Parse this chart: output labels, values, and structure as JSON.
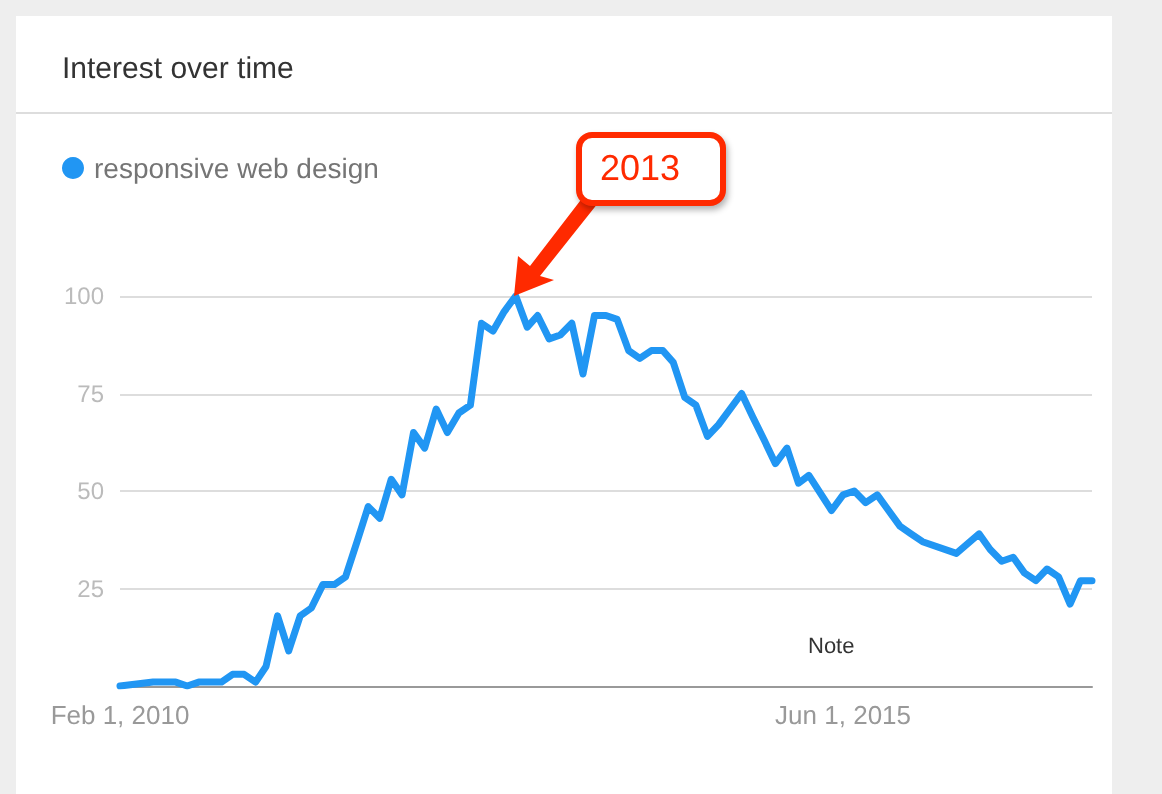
{
  "chart_data": {
    "type": "line",
    "title": "Interest over time",
    "x": [
      "2010-02",
      "2010-05",
      "2010-07",
      "2010-08",
      "2010-09",
      "2010-11",
      "2010-12",
      "2011-01",
      "2011-02",
      "2011-03",
      "2011-04",
      "2011-05",
      "2011-06",
      "2011-07",
      "2011-08",
      "2011-09",
      "2011-10",
      "2011-11",
      "2011-12",
      "2012-01",
      "2012-02",
      "2012-03",
      "2012-04",
      "2012-05",
      "2012-06",
      "2012-07",
      "2012-08",
      "2012-09",
      "2012-10",
      "2012-11",
      "2012-12",
      "2013-01",
      "2013-02",
      "2013-03",
      "2013-04",
      "2013-05",
      "2013-06",
      "2013-07",
      "2013-08",
      "2013-09",
      "2013-10",
      "2013-11",
      "2013-12",
      "2014-01",
      "2014-02",
      "2014-03",
      "2014-04",
      "2014-05",
      "2014-06",
      "2014-07",
      "2014-09",
      "2014-10",
      "2014-11",
      "2014-12",
      "2015-01",
      "2015-02",
      "2015-03",
      "2015-05",
      "2015-06",
      "2015-07",
      "2015-08",
      "2015-09",
      "2015-11",
      "2015-12",
      "2016-01",
      "2016-04",
      "2016-06",
      "2016-07",
      "2016-08",
      "2016-09",
      "2016-10",
      "2016-11",
      "2016-12",
      "2017-01",
      "2017-02",
      "2017-03",
      "2017-04"
    ],
    "series": [
      {
        "name": "responsive web design",
        "color": "#2196f3",
        "values": [
          0,
          1,
          1,
          0,
          1,
          1,
          3,
          3,
          1,
          5,
          18,
          9,
          18,
          20,
          26,
          26,
          28,
          37,
          46,
          43,
          53,
          49,
          65,
          61,
          71,
          65,
          70,
          72,
          93,
          91,
          96,
          100,
          92,
          95,
          89,
          90,
          93,
          80,
          95,
          95,
          94,
          86,
          84,
          86,
          86,
          83,
          74,
          72,
          64,
          67,
          75,
          69,
          63,
          57,
          61,
          52,
          54,
          45,
          49,
          50,
          47,
          49,
          41,
          39,
          37,
          34,
          39,
          35,
          32,
          33,
          29,
          27,
          30,
          28,
          21,
          27,
          27
        ]
      }
    ],
    "xlim": [
      "2010-02",
      "2017-04"
    ],
    "xticks": [
      {
        "value": "2010-02",
        "label": "Feb 1, 2010"
      },
      {
        "value": "2015-06",
        "label": "Jun 1, 2015"
      }
    ],
    "ylim": [
      0,
      100
    ],
    "yticks": [
      25,
      50,
      75,
      100
    ],
    "grid": "y",
    "legend": "top left",
    "marker": "none",
    "line_style": "solid",
    "annotations": [
      "2013",
      "Note"
    ]
  }
}
